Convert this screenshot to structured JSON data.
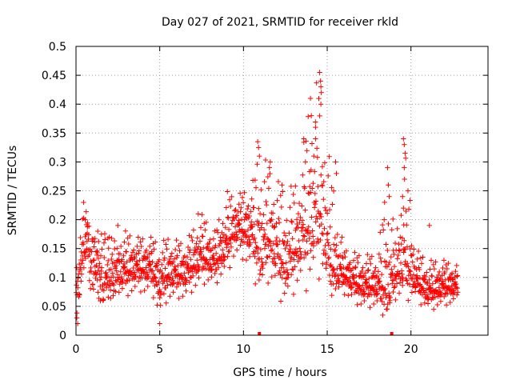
{
  "chart_data": {
    "type": "scatter",
    "title": "Day 027 of 2021, SRMTID for receiver rkld",
    "xlabel": "GPS time / hours",
    "ylabel": "SRMTID / TECUs",
    "xlim": [
      0,
      24.6
    ],
    "ylim": [
      0,
      0.5
    ],
    "grid": true,
    "marker": "+",
    "series_color": "#ff0000",
    "x_ticks": [
      0,
      5,
      10,
      15,
      20
    ],
    "x_tick_labels": [
      "0",
      "5",
      "10",
      "15",
      "20"
    ],
    "y_ticks": [
      0,
      0.05,
      0.1,
      0.15,
      0.2,
      0.25,
      0.3,
      0.35,
      0.4,
      0.45,
      0.5
    ],
    "y_tick_labels": [
      "0",
      "0.05",
      "0.1",
      "0.15",
      "0.2",
      "0.25",
      "0.3",
      "0.35",
      "0.4",
      "0.45",
      "0.5"
    ],
    "gap_markers_x": [
      10.95,
      18.85
    ],
    "envelope": [
      {
        "t": 0.0,
        "lo": 0.02,
        "mid": 0.07,
        "hi": 0.12
      },
      {
        "t": 0.3,
        "lo": 0.05,
        "mid": 0.12,
        "hi": 0.2
      },
      {
        "t": 0.5,
        "lo": 0.07,
        "mid": 0.15,
        "hi": 0.23
      },
      {
        "t": 0.9,
        "lo": 0.05,
        "mid": 0.12,
        "hi": 0.18
      },
      {
        "t": 1.5,
        "lo": 0.06,
        "mid": 0.1,
        "hi": 0.18
      },
      {
        "t": 2.5,
        "lo": 0.06,
        "mid": 0.1,
        "hi": 0.19
      },
      {
        "t": 3.5,
        "lo": 0.06,
        "mid": 0.11,
        "hi": 0.17
      },
      {
        "t": 4.5,
        "lo": 0.06,
        "mid": 0.11,
        "hi": 0.17
      },
      {
        "t": 5.0,
        "lo": 0.02,
        "mid": 0.08,
        "hi": 0.16
      },
      {
        "t": 5.5,
        "lo": 0.05,
        "mid": 0.1,
        "hi": 0.17
      },
      {
        "t": 6.5,
        "lo": 0.05,
        "mid": 0.1,
        "hi": 0.16
      },
      {
        "t": 7.5,
        "lo": 0.08,
        "mid": 0.13,
        "hi": 0.21
      },
      {
        "t": 8.3,
        "lo": 0.08,
        "mid": 0.12,
        "hi": 0.18
      },
      {
        "t": 9.0,
        "lo": 0.1,
        "mid": 0.15,
        "hi": 0.25
      },
      {
        "t": 9.5,
        "lo": 0.12,
        "mid": 0.18,
        "hi": 0.24
      },
      {
        "t": 10.5,
        "lo": 0.1,
        "mid": 0.17,
        "hi": 0.26
      },
      {
        "t": 11.0,
        "lo": 0.07,
        "mid": 0.13,
        "hi": 0.33
      },
      {
        "t": 11.5,
        "lo": 0.08,
        "mid": 0.16,
        "hi": 0.29
      },
      {
        "t": 12.5,
        "lo": 0.05,
        "mid": 0.11,
        "hi": 0.25
      },
      {
        "t": 13.3,
        "lo": 0.07,
        "mid": 0.15,
        "hi": 0.27
      },
      {
        "t": 14.0,
        "lo": 0.08,
        "mid": 0.18,
        "hi": 0.42
      },
      {
        "t": 14.6,
        "lo": 0.1,
        "mid": 0.2,
        "hi": 0.45
      },
      {
        "t": 15.2,
        "lo": 0.07,
        "mid": 0.11,
        "hi": 0.29
      },
      {
        "t": 16.0,
        "lo": 0.06,
        "mid": 0.1,
        "hi": 0.15
      },
      {
        "t": 17.0,
        "lo": 0.04,
        "mid": 0.08,
        "hi": 0.14
      },
      {
        "t": 18.0,
        "lo": 0.04,
        "mid": 0.08,
        "hi": 0.14
      },
      {
        "t": 18.6,
        "lo": 0.03,
        "mid": 0.07,
        "hi": 0.28
      },
      {
        "t": 19.1,
        "lo": 0.05,
        "mid": 0.1,
        "hi": 0.16
      },
      {
        "t": 19.6,
        "lo": 0.06,
        "mid": 0.12,
        "hi": 0.33
      },
      {
        "t": 20.3,
        "lo": 0.06,
        "mid": 0.09,
        "hi": 0.15
      },
      {
        "t": 21.0,
        "lo": 0.04,
        "mid": 0.07,
        "hi": 0.13
      },
      {
        "t": 22.0,
        "lo": 0.04,
        "mid": 0.08,
        "hi": 0.13
      },
      {
        "t": 22.8,
        "lo": 0.05,
        "mid": 0.08,
        "hi": 0.12
      }
    ],
    "peaks": [
      [
        0.45,
        0.23
      ],
      [
        0.55,
        0.2
      ],
      [
        1.3,
        0.18
      ],
      [
        2.5,
        0.19
      ],
      [
        7.3,
        0.21
      ],
      [
        10.85,
        0.335
      ],
      [
        10.9,
        0.325
      ],
      [
        10.95,
        0.31
      ],
      [
        11.6,
        0.3
      ],
      [
        11.55,
        0.29
      ],
      [
        12.3,
        0.26
      ],
      [
        13.6,
        0.34
      ],
      [
        13.7,
        0.3
      ],
      [
        14.0,
        0.41
      ],
      [
        14.05,
        0.38
      ],
      [
        14.3,
        0.36
      ],
      [
        14.55,
        0.455
      ],
      [
        14.6,
        0.44
      ],
      [
        14.65,
        0.42
      ],
      [
        14.62,
        0.4
      ],
      [
        14.2,
        0.31
      ],
      [
        14.3,
        0.34
      ],
      [
        15.5,
        0.3
      ],
      [
        15.55,
        0.28
      ],
      [
        18.6,
        0.29
      ],
      [
        18.65,
        0.26
      ],
      [
        18.7,
        0.24
      ],
      [
        18.4,
        0.2
      ],
      [
        19.55,
        0.34
      ],
      [
        19.6,
        0.33
      ],
      [
        19.65,
        0.315
      ],
      [
        19.6,
        0.29
      ],
      [
        19.5,
        0.24
      ],
      [
        19.55,
        0.22
      ],
      [
        21.1,
        0.19
      ],
      [
        0.05,
        0.03
      ],
      [
        0.1,
        0.02
      ],
      [
        5.0,
        0.02
      ]
    ]
  }
}
